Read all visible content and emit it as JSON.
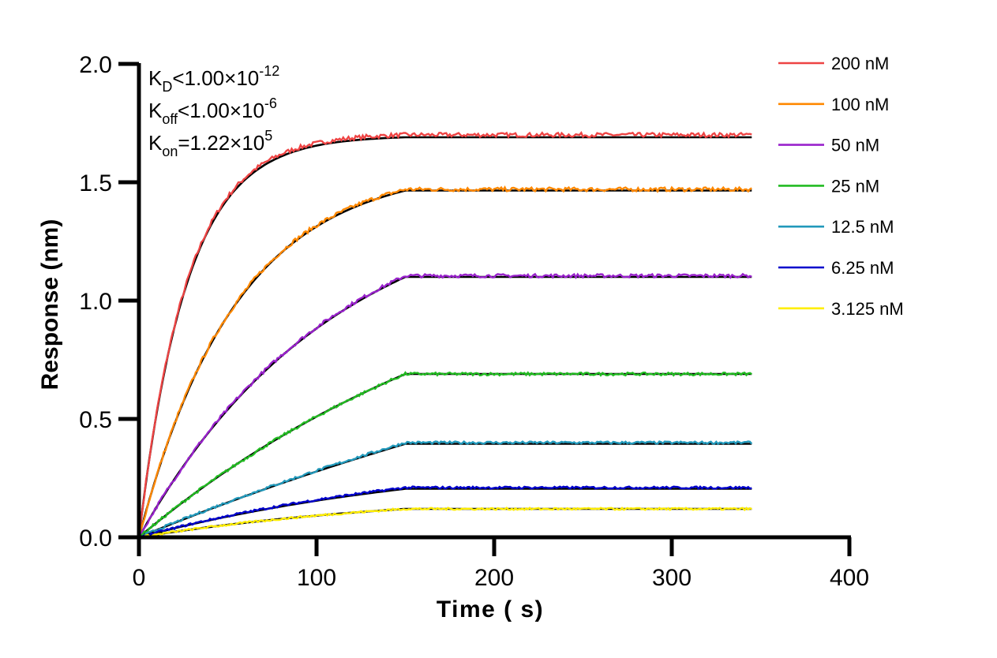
{
  "chart_data": {
    "type": "line",
    "xlabel": "Time ( s)",
    "ylabel": "Response (nm)",
    "xlim": [
      0,
      400
    ],
    "ylim": [
      0,
      2.0
    ],
    "x_ticks": [
      "0",
      "100",
      "200",
      "300",
      "400"
    ],
    "y_ticks": [
      "0.0",
      "0.5",
      "1.0",
      "1.5",
      "2.0"
    ],
    "grid": false,
    "legend_position": "top-right",
    "association_end_s": 150,
    "end_time_s": 345,
    "annotations": [
      {
        "base": "K",
        "sub": "D",
        "rel": "<",
        "value": "1.00×10",
        "sup": "-12"
      },
      {
        "base": "K",
        "sub": "off",
        "rel": "<",
        "value": "1.00×10",
        "sup": "-6"
      },
      {
        "base": "K",
        "sub": "on",
        "rel": "=",
        "value": "1.22×10",
        "sup": "5"
      }
    ],
    "series": [
      {
        "name": "200 nM",
        "color": "#ee4444",
        "plateau": 1.7,
        "fit_plateau": 1.69,
        "shape": 27
      },
      {
        "name": "100 nM",
        "color": "#ff8800",
        "plateau": 1.47,
        "fit_plateau": 1.465,
        "shape": 55
      },
      {
        "name": "50 nM",
        "color": "#9922cc",
        "plateau": 1.105,
        "fit_plateau": 1.1,
        "shape": 110
      },
      {
        "name": "25 nM",
        "color": "#22bb22",
        "plateau": 0.69,
        "fit_plateau": 0.69,
        "shape": 220
      },
      {
        "name": "12.5 nM",
        "color": "#2299bb",
        "plateau": 0.4,
        "fit_plateau": 0.395,
        "shape": 440
      },
      {
        "name": "6.25 nM",
        "color": "#0000cc",
        "plateau": 0.21,
        "fit_plateau": 0.205,
        "shape": 180
      },
      {
        "name": "3.125 nM",
        "color": "#ffee00",
        "plateau": 0.12,
        "fit_plateau": 0.12,
        "shape": 160
      }
    ],
    "fit_color": "#000000"
  }
}
